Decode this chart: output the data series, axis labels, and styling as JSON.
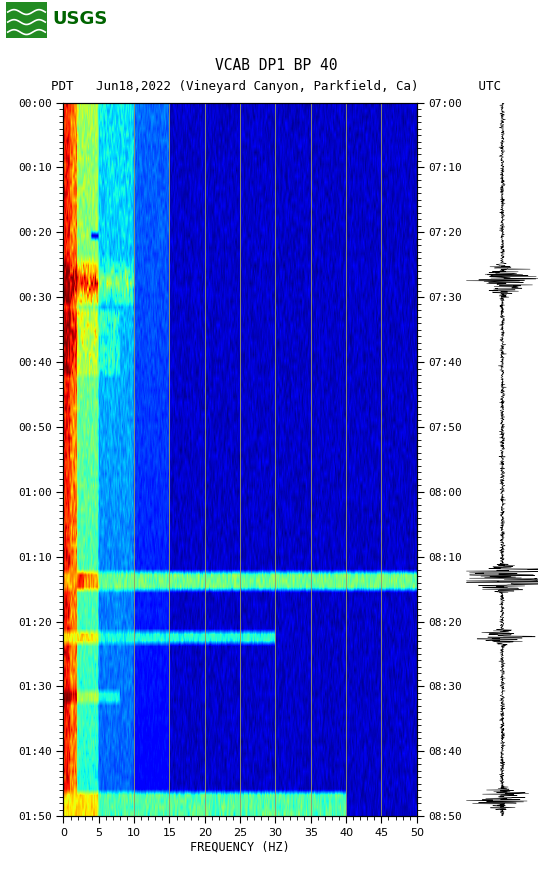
{
  "title_line1": "VCAB DP1 BP 40",
  "title_line2": "PDT   Jun18,2022 (Vineyard Canyon, Parkfield, Ca)        UTC",
  "xlabel": "FREQUENCY (HZ)",
  "freq_min": 0,
  "freq_max": 50,
  "freq_ticks": [
    0,
    5,
    10,
    15,
    20,
    25,
    30,
    35,
    40,
    45,
    50
  ],
  "time_labels_left": [
    "00:00",
    "00:10",
    "00:20",
    "00:30",
    "00:40",
    "00:50",
    "01:00",
    "01:10",
    "01:20",
    "01:30",
    "01:40",
    "01:50"
  ],
  "time_labels_right": [
    "07:00",
    "07:10",
    "07:20",
    "07:30",
    "07:40",
    "07:50",
    "08:00",
    "08:10",
    "08:20",
    "08:30",
    "08:40",
    "08:50"
  ],
  "n_time_steps": 120,
  "n_freq_steps": 500,
  "vertical_lines_freq": [
    10,
    15,
    20,
    25,
    30,
    35,
    40,
    45
  ],
  "bg_color": "white",
  "spectrogram_bg": "#00008B",
  "colormap": "jet",
  "seismogram_color": "black",
  "vline_color": "#999966",
  "logo_color": "#006400"
}
